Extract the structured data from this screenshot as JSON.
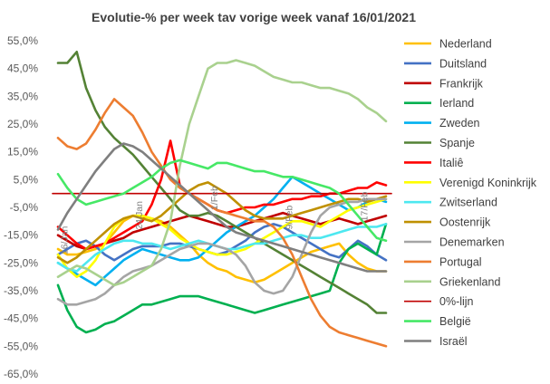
{
  "chart_data": {
    "type": "line",
    "title": "Evolutie-% per week tav vorige week vanaf 16/01/2021",
    "xlabel": "",
    "ylabel": "",
    "ylim": [
      -65,
      55
    ],
    "yticks": [
      55,
      45,
      35,
      25,
      15,
      5,
      -5,
      -15,
      -25,
      -35,
      -45,
      -55,
      -65
    ],
    "ytick_labels": [
      "55,0%",
      "45,0%",
      "35,0%",
      "25,0%",
      "15,0%",
      "5,0%",
      "-5,0%",
      "-15,0%",
      "-25,0%",
      "-35,0%",
      "-45,0%",
      "-55,0%",
      "-65,0%"
    ],
    "x_points": 36,
    "grid": false,
    "legend_position": "right",
    "annotations": [
      {
        "text": "16/Jan",
        "x": 1,
        "y": -22
      },
      {
        "text": "24/Jan",
        "x": 9,
        "y": -13
      },
      {
        "text": "1/Feb",
        "x": 17,
        "y": -6
      },
      {
        "text": "9/Feb",
        "x": 25,
        "y": -13
      },
      {
        "text": "17/Feb",
        "x": 33,
        "y": -10
      }
    ],
    "series": [
      {
        "name": "Nederland",
        "color": "#FFC000",
        "values": [
          -20,
          -22,
          -22,
          -21,
          -20,
          -18,
          -14,
          -10,
          -8,
          -8,
          -9,
          -10,
          -12,
          -15,
          -18,
          -22,
          -25,
          -27,
          -28,
          -30,
          -31,
          -32,
          -31,
          -29,
          -27,
          -25,
          -23,
          -21,
          -20,
          -19,
          -18,
          -22,
          -25,
          -27,
          -28,
          -28
        ]
      },
      {
        "name": "Duitsland",
        "color": "#4472C4",
        "values": [
          -22,
          -20,
          -18,
          -17,
          -19,
          -22,
          -24,
          -22,
          -20,
          -19,
          -19,
          -19,
          -18,
          -18,
          -19,
          -20,
          -21,
          -22,
          -21,
          -19,
          -17,
          -14,
          -12,
          -11,
          -12,
          -14,
          -16,
          -18,
          -20,
          -22,
          -23,
          -20,
          -17,
          -19,
          -22,
          -24
        ]
      },
      {
        "name": "Frankrijk",
        "color": "#C00000",
        "values": [
          -15,
          -17,
          -19,
          -20,
          -19,
          -18,
          -17,
          -16,
          -14,
          -13,
          -12,
          -11,
          -10,
          -9,
          -8,
          -9,
          -10,
          -11,
          -12,
          -12,
          -11,
          -10,
          -9,
          -8,
          -7,
          -8,
          -9,
          -10,
          -11,
          -10,
          -9,
          -10,
          -11,
          -10,
          -9,
          -8
        ]
      },
      {
        "name": "Ierland",
        "color": "#00B050",
        "values": [
          -33,
          -42,
          -48,
          -50,
          -49,
          -47,
          -46,
          -44,
          -42,
          -40,
          -40,
          -39,
          -38,
          -37,
          -37,
          -37,
          -38,
          -39,
          -40,
          -41,
          -42,
          -43,
          -42,
          -41,
          -40,
          -39,
          -38,
          -37,
          -36,
          -35,
          -25,
          -20,
          -18,
          -20,
          -22,
          -11
        ]
      },
      {
        "name": "Zweden",
        "color": "#00B0F0",
        "values": [
          -25,
          -27,
          -29,
          -31,
          -33,
          -30,
          -27,
          -24,
          -22,
          -20,
          -21,
          -22,
          -23,
          -24,
          -24,
          -23,
          -20,
          -17,
          -14,
          -12,
          -10,
          -8,
          -5,
          -2,
          2,
          6,
          4,
          2,
          0,
          -2,
          -4,
          -6,
          -5,
          -3,
          -2,
          -3
        ]
      },
      {
        "name": "Spanje",
        "color": "#548235",
        "values": [
          47,
          47,
          51,
          38,
          30,
          24,
          20,
          17,
          14,
          10,
          6,
          2,
          -2,
          -6,
          -8,
          -8,
          -7,
          -8,
          -10,
          -12,
          -14,
          -16,
          -18,
          -20,
          -22,
          -24,
          -26,
          -28,
          -30,
          -32,
          -34,
          -36,
          -38,
          -40,
          -43,
          -43
        ]
      },
      {
        "name": "Italiê",
        "color": "#FF0000",
        "values": [
          -12,
          -15,
          -18,
          -20,
          -19,
          -18,
          -16,
          -14,
          -12,
          -10,
          -4,
          5,
          19,
          3,
          0,
          -2,
          -4,
          -6,
          -7,
          -6,
          -5,
          -5,
          -4,
          -4,
          -3,
          -2,
          -2,
          -1,
          -1,
          0,
          0,
          1,
          2,
          2,
          4,
          3
        ]
      },
      {
        "name": "Verenigd Koninkrijk",
        "color": "#FFFF00",
        "values": [
          -22,
          -27,
          -30,
          -28,
          -24,
          -18,
          -12,
          -9,
          -8,
          -8,
          -9,
          -11,
          -13,
          -16,
          -18,
          -20,
          -21,
          -22,
          -22,
          -21,
          -20,
          -18,
          -16,
          -14,
          -12,
          -10,
          -10,
          -11,
          -12,
          -10,
          -8,
          -6,
          -5,
          -4,
          -3,
          -2
        ]
      },
      {
        "name": "Zwitserland",
        "color": "#4DE8F0",
        "values": [
          -25,
          -27,
          -28,
          -25,
          -22,
          -20,
          -18,
          -17,
          -17,
          -18,
          -18,
          -19,
          -20,
          -19,
          -18,
          -17,
          -18,
          -19,
          -20,
          -20,
          -19,
          -18,
          -18,
          -17,
          -16,
          -15,
          -15,
          -16,
          -16,
          -15,
          -14,
          -13,
          -12,
          -12,
          -12,
          -11
        ]
      },
      {
        "name": "Oostenrijk",
        "color": "#BF9000",
        "values": [
          -23,
          -25,
          -23,
          -20,
          -17,
          -14,
          -11,
          -9,
          -8,
          -9,
          -10,
          -8,
          -5,
          -2,
          1,
          3,
          4,
          2,
          0,
          -3,
          -6,
          -8,
          -9,
          -9,
          -9,
          -8,
          -7,
          -6,
          -5,
          -4,
          -3,
          -2,
          -2,
          -3,
          -2,
          -1
        ]
      },
      {
        "name": "Denemarken",
        "color": "#A5A5A5",
        "values": [
          -38,
          -40,
          -40,
          -39,
          -38,
          -36,
          -33,
          -30,
          -28,
          -27,
          -26,
          -24,
          -22,
          -20,
          -19,
          -18,
          -18,
          -19,
          -20,
          -22,
          -26,
          -32,
          -35,
          -36,
          -35,
          -30,
          -22,
          -14,
          -8,
          -5,
          -4,
          -3,
          -3,
          -2,
          -2,
          -2
        ]
      },
      {
        "name": "Portugal",
        "color": "#ED7D31",
        "values": [
          20,
          17,
          16,
          18,
          23,
          29,
          34,
          31,
          28,
          22,
          15,
          10,
          5,
          2,
          0,
          -2,
          -4,
          -6,
          -7,
          -8,
          -9,
          -10,
          -10,
          -12,
          -16,
          -22,
          -30,
          -38,
          -44,
          -48,
          -50,
          -51,
          -52,
          -53,
          -54,
          -55
        ]
      },
      {
        "name": "Griekenland",
        "color": "#A9D18E",
        "values": [
          -30,
          -28,
          -26,
          -27,
          -29,
          -31,
          -33,
          -32,
          -30,
          -28,
          -26,
          -20,
          -10,
          10,
          25,
          35,
          45,
          47,
          47,
          48,
          47,
          46,
          44,
          42,
          41,
          40,
          40,
          39,
          38,
          38,
          37,
          36,
          34,
          31,
          29,
          26
        ]
      },
      {
        "name": "0%-lijn",
        "color": "#C00000",
        "values": [
          0,
          0,
          0,
          0,
          0,
          0,
          0,
          0,
          0,
          0,
          0,
          0,
          0,
          0,
          0,
          0,
          0,
          0,
          0,
          0,
          0,
          0,
          0,
          0,
          0,
          0,
          0,
          0,
          0,
          0,
          0,
          0,
          0,
          0,
          0,
          0
        ]
      },
      {
        "name": "België",
        "color": "#46E866",
        "values": [
          7,
          2,
          -2,
          -4,
          -3,
          -2,
          -1,
          0,
          2,
          4,
          6,
          9,
          11,
          12,
          11,
          10,
          9,
          11,
          11,
          10,
          9,
          8,
          8,
          7,
          6,
          6,
          5,
          4,
          3,
          2,
          0,
          -4,
          -8,
          -12,
          -16,
          -17
        ]
      },
      {
        "name": "Israël",
        "color": "#7F7F7F",
        "values": [
          -13,
          -7,
          -2,
          3,
          8,
          12,
          16,
          18,
          17,
          15,
          12,
          9,
          6,
          3,
          0,
          -3,
          -6,
          -9,
          -12,
          -14,
          -15,
          -16,
          -17,
          -18,
          -19,
          -20,
          -21,
          -22,
          -23,
          -24,
          -25,
          -26,
          -27,
          -28,
          -28,
          -28
        ]
      }
    ]
  }
}
